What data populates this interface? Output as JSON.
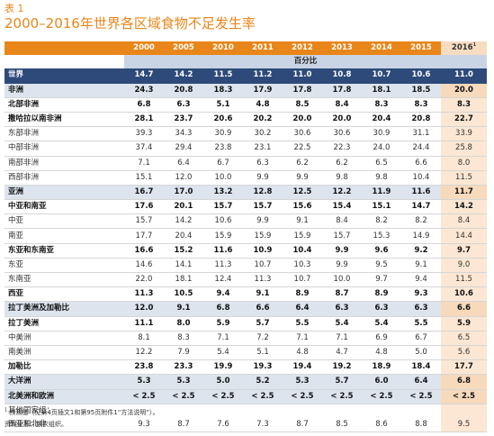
{
  "table_no": "表 1",
  "title": "2000–2016年世界各区域食物不足发生率",
  "years": [
    "2000",
    "2005",
    "2010",
    "2011",
    "2012",
    "2013",
    "2014",
    "2015",
    "2016"
  ],
  "last_year_sup": "1",
  "unit": "百分比",
  "rows": [
    {
      "label": "世界",
      "values": [
        "14.7",
        "14.2",
        "11.5",
        "11.2",
        "11.0",
        "10.8",
        "10.7",
        "10.6",
        "11.0"
      ]
    },
    {
      "label": "非洲",
      "values": [
        "24.3",
        "20.8",
        "18.3",
        "17.9",
        "17.8",
        "17.8",
        "18.1",
        "18.5",
        "20.0"
      ]
    },
    {
      "label": "北部非洲",
      "values": [
        "6.8",
        "6.3",
        "5.1",
        "4.8",
        "8.5",
        "8.4",
        "8.3",
        "8.3",
        "8.3"
      ]
    },
    {
      "label": "撒哈拉以南非洲",
      "values": [
        "28.1",
        "23.7",
        "20.6",
        "20.2",
        "20.0",
        "20.0",
        "20.4",
        "20.8",
        "22.7"
      ]
    },
    {
      "label": "东部非洲",
      "values": [
        "39.3",
        "34.3",
        "30.9",
        "30.2",
        "30.6",
        "30.6",
        "30.9",
        "31.1",
        "33.9"
      ]
    },
    {
      "label": "中部非洲",
      "values": [
        "37.4",
        "29.4",
        "23.8",
        "23.1",
        "22.5",
        "22.3",
        "24.0",
        "24.4",
        "25.8"
      ]
    },
    {
      "label": "南部非洲",
      "values": [
        "7.1",
        "6.4",
        "6.7",
        "6.3",
        "6.2",
        "6.2",
        "6.5",
        "6.6",
        "8.0"
      ]
    },
    {
      "label": "西部非洲",
      "values": [
        "15.1",
        "12.0",
        "10.0",
        "9.9",
        "9.9",
        "9.8",
        "9.8",
        "10.4",
        "11.5"
      ]
    },
    {
      "label": "亚洲",
      "values": [
        "16.7",
        "17.0",
        "13.2",
        "12.8",
        "12.5",
        "12.2",
        "11.9",
        "11.6",
        "11.7"
      ]
    },
    {
      "label": "中亚和南亚",
      "values": [
        "17.6",
        "20.1",
        "15.7",
        "15.7",
        "15.6",
        "15.4",
        "15.1",
        "14.7",
        "14.2"
      ]
    },
    {
      "label": "中亚",
      "values": [
        "15.7",
        "14.2",
        "10.6",
        "9.9",
        "9.1",
        "8.4",
        "8.2",
        "8.2",
        "8.4"
      ]
    },
    {
      "label": "南亚",
      "values": [
        "17.7",
        "20.4",
        "15.9",
        "15.9",
        "15.9",
        "15.7",
        "15.3",
        "14.9",
        "14.4"
      ]
    },
    {
      "label": "东亚和东南亚",
      "values": [
        "16.6",
        "15.2",
        "11.6",
        "10.9",
        "10.4",
        "9.9",
        "9.6",
        "9.2",
        "9.7"
      ]
    },
    {
      "label": "东亚",
      "values": [
        "14.6",
        "14.1",
        "11.3",
        "10.7",
        "10.3",
        "9.9",
        "9.5",
        "9.1",
        "9.0"
      ]
    },
    {
      "label": "东南亚",
      "values": [
        "22.0",
        "18.1",
        "12.4",
        "11.3",
        "10.7",
        "10.0",
        "9.7",
        "9.4",
        "11.5"
      ]
    },
    {
      "label": "西亚",
      "values": [
        "11.3",
        "10.5",
        "9.4",
        "9.1",
        "8.9",
        "8.7",
        "8.9",
        "9.3",
        "10.6"
      ]
    },
    {
      "label": "拉丁美洲及加勒比",
      "values": [
        "12.0",
        "9.1",
        "6.8",
        "6.6",
        "6.4",
        "6.3",
        "6.3",
        "6.3",
        "6.6"
      ]
    },
    {
      "label": "拉丁美洲",
      "values": [
        "11.1",
        "8.0",
        "5.9",
        "5.7",
        "5.5",
        "5.4",
        "5.4",
        "5.5",
        "5.9"
      ]
    },
    {
      "label": "中美洲",
      "values": [
        "8.1",
        "8.3",
        "7.1",
        "7.2",
        "7.1",
        "7.1",
        "6.9",
        "6.7",
        "6.5"
      ]
    },
    {
      "label": "南美洲",
      "values": [
        "12.2",
        "7.9",
        "5.4",
        "5.1",
        "4.8",
        "4.7",
        "4.8",
        "5.0",
        "5.6"
      ]
    },
    {
      "label": "加勒比",
      "values": [
        "23.8",
        "23.3",
        "19.9",
        "19.3",
        "19.4",
        "19.2",
        "18.9",
        "18.4",
        "17.7"
      ]
    },
    {
      "label": "大洋洲",
      "values": [
        "5.3",
        "5.3",
        "5.0",
        "5.2",
        "5.3",
        "5.7",
        "6.0",
        "6.4",
        "6.8"
      ]
    },
    {
      "label": "北美洲和欧洲",
      "values": [
        "< 2.5",
        "< 2.5",
        "< 2.5",
        "< 2.5",
        "< 2.5",
        "< 2.5",
        "< 2.5",
        "< 2.5",
        "< 2.5"
      ]
    },
    {
      "label": "其他国家组：",
      "values": [
        "",
        "",
        "",
        "",
        "",
        "",
        "",
        "",
        ""
      ]
    },
    {
      "label": "西亚和北非",
      "values": [
        "9.3",
        "8.7",
        "7.6",
        "7.3",
        "8.7",
        "8.5",
        "8.6",
        "8.8",
        "9.5"
      ]
    }
  ],
  "footnote_mark": "1",
  "footnote": "预测值（见第4页插文1和第95页附件1“方法说明”）。",
  "source": "资料来源：粮农组织。"
}
